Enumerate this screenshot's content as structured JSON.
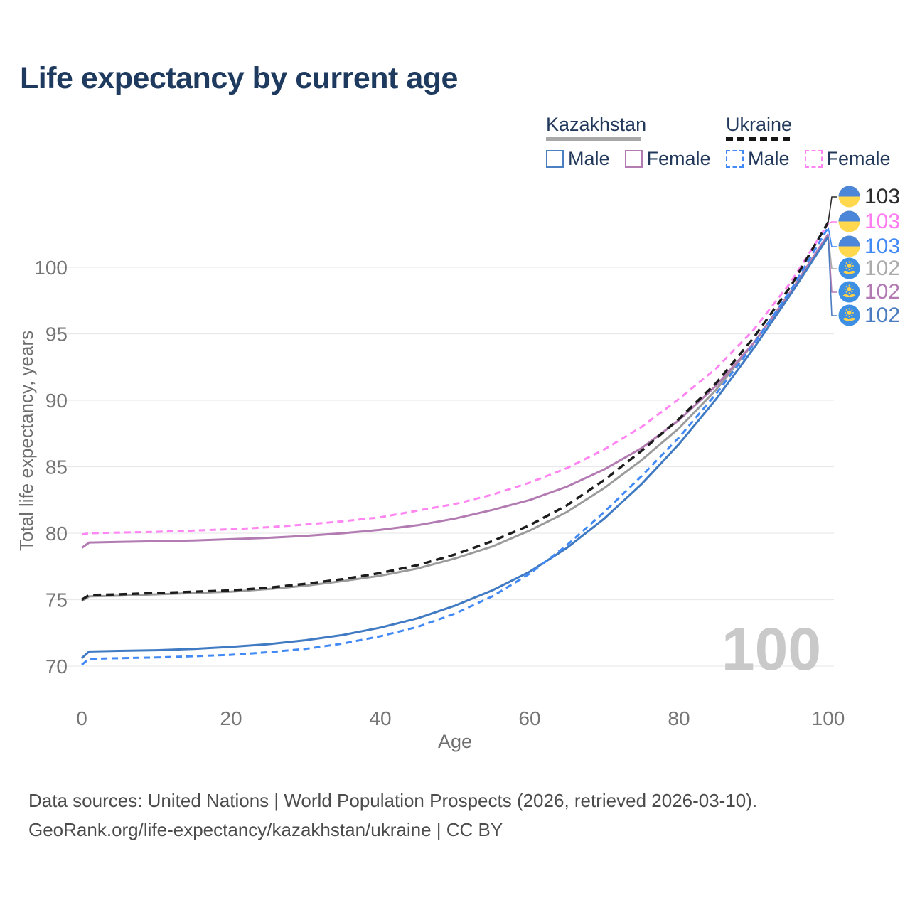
{
  "title": "Life expectancy by current age",
  "legend": {
    "groups": [
      {
        "label": "Kazakhstan",
        "line_style": "solid",
        "line_color": "#a8a8a8",
        "items": [
          {
            "label": "Male",
            "color": "#4a7fc1",
            "dashed": false
          },
          {
            "label": "Female",
            "color": "#b27bb2",
            "dashed": false
          }
        ]
      },
      {
        "label": "Ukraine",
        "line_style": "dashed",
        "line_color": "#161616",
        "items": [
          {
            "label": "Male",
            "color": "#4189f5",
            "dashed": true
          },
          {
            "label": "Female",
            "color": "#ff85f2",
            "dashed": true
          }
        ]
      }
    ]
  },
  "watermark_age": "100",
  "footer": {
    "line1": "Data sources: United Nations | World Population Prospects (2026, retrieved 2026-03-10).",
    "line2": "GeoRank.org/life-expectancy/kazakhstan/ukraine | CC BY"
  },
  "chart_data": {
    "type": "line",
    "title": "Life expectancy by current age",
    "xlabel": "Age",
    "ylabel": "Total life expectancy, years",
    "xlim": [
      0,
      100
    ],
    "ylim": [
      68.5,
      104.5
    ],
    "xticks": [
      0,
      20,
      40,
      60,
      80,
      100
    ],
    "yticks": [
      70,
      75,
      80,
      85,
      90,
      95,
      100
    ],
    "grid": "horizontal-only",
    "legend_position": "top-right",
    "x": [
      0,
      1,
      5,
      10,
      15,
      20,
      25,
      30,
      35,
      40,
      45,
      50,
      55,
      60,
      65,
      70,
      75,
      80,
      85,
      90,
      95,
      100
    ],
    "series": [
      {
        "id": "kz-total",
        "name": "Kazakhstan — Both sexes",
        "country": "Kazakhstan",
        "sex": "both",
        "color": "#9b9b9b",
        "dash": false,
        "values": [
          74.9,
          75.25,
          75.3,
          75.4,
          75.5,
          75.6,
          75.8,
          76.05,
          76.4,
          76.8,
          77.35,
          78.1,
          79.0,
          80.2,
          81.6,
          83.4,
          85.5,
          87.9,
          90.8,
          94.3,
          98.2,
          102.4
        ],
        "end_label": {
          "value": "102",
          "color": "#ababab",
          "flag_icon": "kazakhstan-flag-icon",
          "row": 3
        }
      },
      {
        "id": "kz-female",
        "name": "Kazakhstan — Female",
        "country": "Kazakhstan",
        "sex": "female",
        "color": "#b27bb2",
        "dash": false,
        "values": [
          78.9,
          79.3,
          79.35,
          79.4,
          79.45,
          79.55,
          79.65,
          79.8,
          80.0,
          80.25,
          80.6,
          81.1,
          81.75,
          82.5,
          83.5,
          84.8,
          86.4,
          88.5,
          91.1,
          94.3,
          98.2,
          102.5
        ],
        "end_label": {
          "value": "102",
          "color": "#b279b2",
          "flag_icon": "kazakhstan-flag-icon",
          "row": 4
        }
      },
      {
        "id": "kz-male",
        "name": "Kazakhstan — Male",
        "country": "Kazakhstan",
        "sex": "male",
        "color": "#3f7ac2",
        "dash": false,
        "values": [
          70.6,
          71.1,
          71.15,
          71.2,
          71.3,
          71.45,
          71.65,
          71.95,
          72.35,
          72.9,
          73.6,
          74.55,
          75.7,
          77.1,
          78.9,
          81.1,
          83.7,
          86.7,
          90.1,
          93.9,
          98.0,
          102.3
        ],
        "end_label": {
          "value": "102",
          "color": "#4a7cc0",
          "flag_icon": "kazakhstan-flag-icon",
          "row": 5
        }
      },
      {
        "id": "ua-male",
        "name": "Ukraine — Male",
        "country": "Ukraine",
        "sex": "male",
        "color": "#4189f5",
        "dash": true,
        "values": [
          70.1,
          70.55,
          70.6,
          70.65,
          70.75,
          70.85,
          71.05,
          71.3,
          71.7,
          72.25,
          72.95,
          73.95,
          75.25,
          76.95,
          79.1,
          81.6,
          84.3,
          87.2,
          90.5,
          94.2,
          98.3,
          103.0
        ],
        "end_label": {
          "value": "103",
          "color": "#4189f5",
          "flag_icon": "ukraine-flag-icon",
          "row": 2
        }
      },
      {
        "id": "ua-female",
        "name": "Ukraine — Female",
        "country": "Ukraine",
        "sex": "female",
        "color": "#ff85f2",
        "dash": true,
        "values": [
          79.9,
          80.0,
          80.05,
          80.1,
          80.2,
          80.3,
          80.45,
          80.65,
          80.9,
          81.2,
          81.7,
          82.2,
          82.9,
          83.8,
          84.9,
          86.3,
          88.0,
          90.1,
          92.4,
          95.3,
          98.9,
          103.3
        ],
        "end_label": {
          "value": "103",
          "color": "#ff7cf0",
          "flag_icon": "ukraine-flag-icon",
          "row": 1
        }
      },
      {
        "id": "ua-total",
        "name": "Ukraine — Both sexes",
        "country": "Ukraine",
        "sex": "both",
        "color": "#1c1c1c",
        "dash": true,
        "values": [
          75.0,
          75.35,
          75.4,
          75.5,
          75.6,
          75.7,
          75.9,
          76.2,
          76.55,
          77.0,
          77.6,
          78.4,
          79.4,
          80.6,
          82.1,
          84.0,
          86.2,
          88.6,
          91.3,
          94.7,
          98.6,
          103.4
        ],
        "end_label": {
          "value": "103",
          "color": "#2b2b2b",
          "flag_icon": "ukraine-flag-icon",
          "row": 0
        }
      }
    ]
  }
}
